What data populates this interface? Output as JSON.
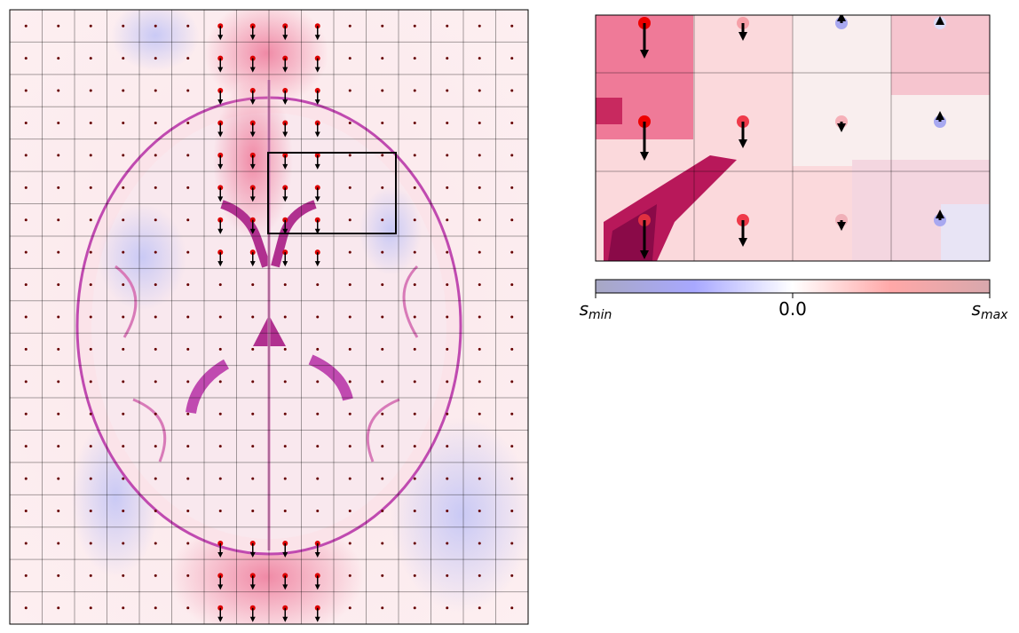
{
  "colorbar": {
    "ticks": [
      {
        "symbol": "s",
        "subscript": "min"
      },
      {
        "value": 0,
        "label": "0.0"
      },
      {
        "symbol": "s",
        "subscript": "max"
      }
    ]
  }
}
